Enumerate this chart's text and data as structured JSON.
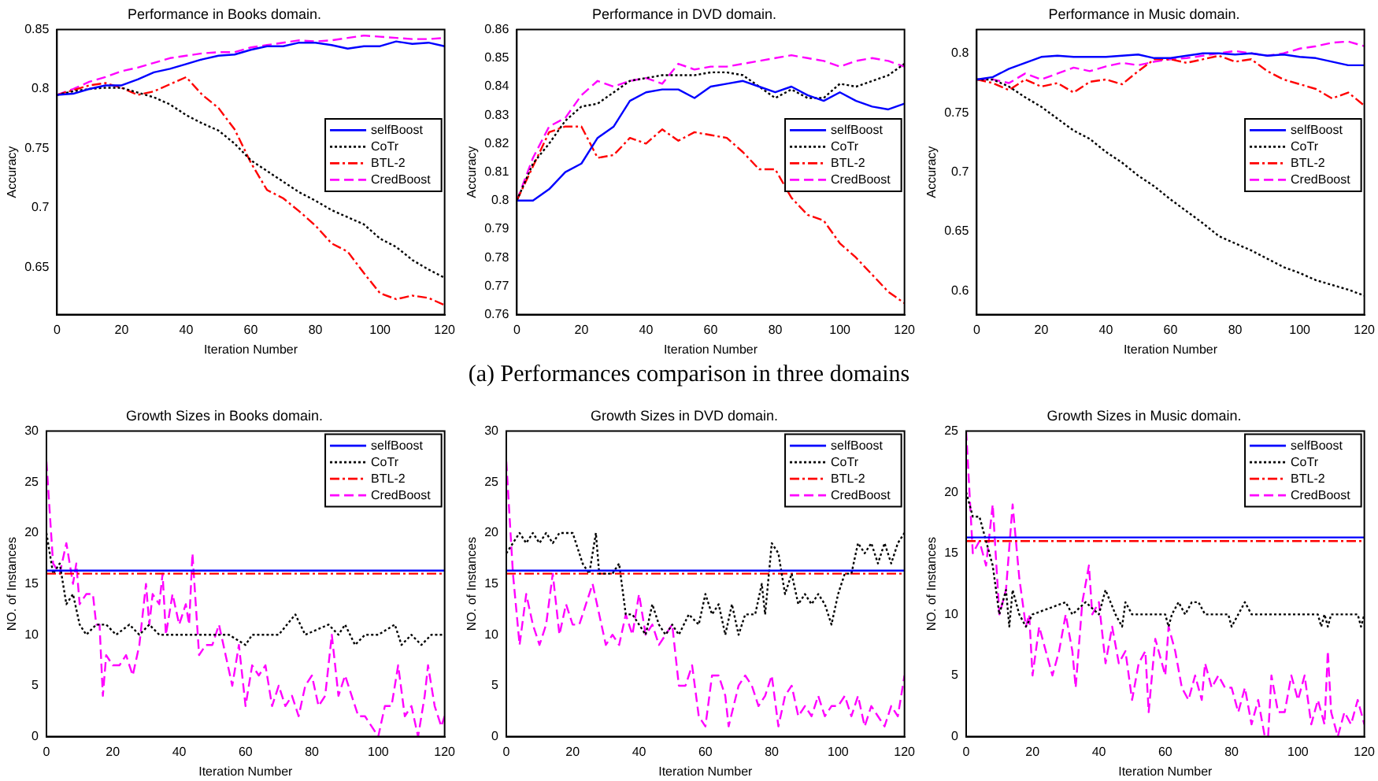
{
  "chart_data": [
    {
      "type": "line",
      "title": "Performance in Books domain.",
      "xlabel": "Iteration Number",
      "ylabel": "Accuracy",
      "xlim": [
        0,
        120
      ],
      "xticks": [
        0,
        20,
        40,
        60,
        80,
        100,
        120
      ],
      "ylim": [
        0.61,
        0.85
      ],
      "yticks": [
        0.65,
        0.7,
        0.75,
        0.8,
        0.85
      ],
      "legend": "right",
      "grid": false,
      "annotations": [
        "(a) Performances comparison in three domains"
      ],
      "x": [
        0,
        5,
        10,
        15,
        20,
        25,
        30,
        35,
        40,
        45,
        50,
        55,
        60,
        65,
        70,
        75,
        80,
        85,
        90,
        95,
        100,
        105,
        110,
        115,
        120
      ],
      "series": [
        {
          "name": "selfBoost",
          "color": "#0000ff",
          "line_style": "solid",
          "values": [
            0.795,
            0.796,
            0.8,
            0.803,
            0.803,
            0.808,
            0.814,
            0.817,
            0.821,
            0.825,
            0.828,
            0.829,
            0.833,
            0.836,
            0.836,
            0.839,
            0.839,
            0.837,
            0.834,
            0.836,
            0.836,
            0.84,
            0.838,
            0.839,
            0.836
          ]
        },
        {
          "name": "CoTr",
          "color": "#000000",
          "line_style": "dotted",
          "values": [
            0.795,
            0.798,
            0.8,
            0.801,
            0.801,
            0.797,
            0.793,
            0.787,
            0.778,
            0.771,
            0.765,
            0.754,
            0.74,
            0.731,
            0.722,
            0.713,
            0.706,
            0.698,
            0.692,
            0.686,
            0.674,
            0.667,
            0.656,
            0.648,
            0.641
          ]
        },
        {
          "name": "BTL-2",
          "color": "#ff0000",
          "line_style": "dashdot",
          "values": [
            0.795,
            0.799,
            0.803,
            0.805,
            0.801,
            0.795,
            0.798,
            0.804,
            0.81,
            0.795,
            0.784,
            0.766,
            0.738,
            0.715,
            0.708,
            0.697,
            0.685,
            0.67,
            0.663,
            0.645,
            0.628,
            0.623,
            0.626,
            0.624,
            0.618
          ]
        },
        {
          "name": "CredBoost",
          "color": "#ff00ff",
          "line_style": "dashed",
          "values": [
            0.795,
            0.8,
            0.806,
            0.81,
            0.815,
            0.818,
            0.822,
            0.826,
            0.828,
            0.83,
            0.831,
            0.831,
            0.835,
            0.837,
            0.839,
            0.841,
            0.84,
            0.841,
            0.843,
            0.845,
            0.844,
            0.843,
            0.842,
            0.842,
            0.843
          ]
        }
      ]
    },
    {
      "type": "line",
      "title": "Performance in DVD domain.",
      "xlabel": "Iteration Number",
      "ylabel": "Accuracy",
      "xlim": [
        0,
        120
      ],
      "xticks": [
        0,
        20,
        40,
        60,
        80,
        100,
        120
      ],
      "ylim": [
        0.76,
        0.86
      ],
      "yticks": [
        0.76,
        0.77,
        0.78,
        0.79,
        0.8,
        0.81,
        0.82,
        0.83,
        0.84,
        0.85,
        0.86
      ],
      "legend": "right",
      "grid": false,
      "x": [
        0,
        5,
        10,
        15,
        20,
        25,
        30,
        35,
        40,
        45,
        50,
        55,
        60,
        65,
        70,
        75,
        80,
        85,
        90,
        95,
        100,
        105,
        110,
        115,
        120
      ],
      "series": [
        {
          "name": "selfBoost",
          "color": "#0000ff",
          "line_style": "solid",
          "values": [
            0.8,
            0.8,
            0.804,
            0.81,
            0.813,
            0.822,
            0.826,
            0.835,
            0.838,
            0.839,
            0.839,
            0.836,
            0.84,
            0.841,
            0.842,
            0.84,
            0.838,
            0.84,
            0.837,
            0.835,
            0.838,
            0.835,
            0.833,
            0.832,
            0.834
          ]
        },
        {
          "name": "CoTr",
          "color": "#000000",
          "line_style": "dotted",
          "values": [
            0.8,
            0.813,
            0.82,
            0.828,
            0.833,
            0.834,
            0.838,
            0.842,
            0.843,
            0.844,
            0.844,
            0.844,
            0.845,
            0.845,
            0.844,
            0.84,
            0.836,
            0.839,
            0.836,
            0.836,
            0.841,
            0.84,
            0.842,
            0.844,
            0.848
          ]
        },
        {
          "name": "BTL-2",
          "color": "#ff0000",
          "line_style": "dashdot",
          "values": [
            0.8,
            0.812,
            0.824,
            0.826,
            0.826,
            0.815,
            0.816,
            0.822,
            0.82,
            0.825,
            0.821,
            0.824,
            0.823,
            0.822,
            0.817,
            0.811,
            0.811,
            0.801,
            0.795,
            0.793,
            0.785,
            0.78,
            0.774,
            0.768,
            0.764
          ]
        },
        {
          "name": "CredBoost",
          "color": "#ff00ff",
          "line_style": "dashed",
          "values": [
            0.8,
            0.815,
            0.826,
            0.829,
            0.837,
            0.842,
            0.84,
            0.842,
            0.843,
            0.841,
            0.848,
            0.846,
            0.847,
            0.847,
            0.848,
            0.849,
            0.85,
            0.851,
            0.85,
            0.849,
            0.847,
            0.849,
            0.85,
            0.849,
            0.847
          ]
        }
      ]
    },
    {
      "type": "line",
      "title": "Performance in Music domain.",
      "xlabel": "Iteration Number",
      "ylabel": "Accuracy",
      "xlim": [
        0,
        120
      ],
      "xticks": [
        0,
        20,
        40,
        60,
        80,
        100,
        120
      ],
      "ylim": [
        0.58,
        0.82
      ],
      "yticks": [
        0.6,
        0.65,
        0.7,
        0.75,
        0.8
      ],
      "legend": "right",
      "grid": false,
      "x": [
        0,
        5,
        10,
        15,
        20,
        25,
        30,
        35,
        40,
        45,
        50,
        55,
        60,
        65,
        70,
        75,
        80,
        85,
        90,
        95,
        100,
        105,
        110,
        115,
        120
      ],
      "series": [
        {
          "name": "selfBoost",
          "color": "#0000ff",
          "line_style": "solid",
          "values": [
            0.778,
            0.78,
            0.787,
            0.792,
            0.797,
            0.798,
            0.797,
            0.797,
            0.797,
            0.798,
            0.799,
            0.796,
            0.796,
            0.798,
            0.8,
            0.8,
            0.799,
            0.8,
            0.798,
            0.799,
            0.797,
            0.796,
            0.793,
            0.79,
            0.79
          ]
        },
        {
          "name": "CoTr",
          "color": "#000000",
          "line_style": "dotted",
          "values": [
            0.778,
            0.778,
            0.772,
            0.763,
            0.755,
            0.745,
            0.735,
            0.728,
            0.717,
            0.708,
            0.697,
            0.688,
            0.677,
            0.667,
            0.657,
            0.646,
            0.64,
            0.634,
            0.627,
            0.62,
            0.615,
            0.609,
            0.605,
            0.601,
            0.596
          ]
        },
        {
          "name": "BTL-2",
          "color": "#ff0000",
          "line_style": "dashdot",
          "values": [
            0.778,
            0.775,
            0.769,
            0.778,
            0.772,
            0.775,
            0.767,
            0.776,
            0.778,
            0.774,
            0.785,
            0.795,
            0.795,
            0.792,
            0.795,
            0.798,
            0.793,
            0.795,
            0.785,
            0.778,
            0.774,
            0.77,
            0.762,
            0.767,
            0.756
          ]
        },
        {
          "name": "CredBoost",
          "color": "#ff00ff",
          "line_style": "dashed",
          "values": [
            0.778,
            0.778,
            0.775,
            0.783,
            0.778,
            0.783,
            0.788,
            0.785,
            0.789,
            0.792,
            0.79,
            0.793,
            0.795,
            0.796,
            0.798,
            0.8,
            0.802,
            0.8,
            0.798,
            0.8,
            0.804,
            0.806,
            0.809,
            0.81,
            0.806
          ]
        }
      ]
    },
    {
      "type": "line",
      "title": "Growth Sizes in Books domain.",
      "xlabel": "Iteration Number",
      "ylabel": "NO. of Instances",
      "xlim": [
        0,
        120
      ],
      "xticks": [
        0,
        20,
        40,
        60,
        80,
        100,
        120
      ],
      "ylim": [
        0,
        30
      ],
      "yticks": [
        0,
        5,
        10,
        15,
        20,
        25,
        30
      ],
      "legend": "top right",
      "grid": false,
      "series": [
        {
          "name": "selfBoost",
          "color": "#0000ff",
          "line_style": "solid",
          "x": [
            0,
            120
          ],
          "values": [
            16.3,
            16.3
          ]
        },
        {
          "name": "CoTr",
          "color": "#000000",
          "line_style": "dotted",
          "x": [
            0,
            2,
            4,
            6,
            8,
            10,
            12,
            15,
            18,
            21,
            25,
            28,
            31,
            34,
            40,
            48,
            55,
            60,
            62,
            70,
            75,
            78,
            85,
            88,
            90,
            93,
            96,
            100,
            105,
            107,
            110,
            113,
            116,
            120
          ],
          "values": [
            20,
            16,
            17,
            13,
            14,
            11,
            10,
            11,
            11,
            10,
            11,
            10,
            11,
            10,
            10,
            10,
            10,
            9,
            10,
            10,
            12,
            10,
            11,
            10,
            11,
            9,
            10,
            10,
            11,
            9,
            10,
            9,
            10,
            10
          ]
        },
        {
          "name": "BTL-2",
          "color": "#ff0000",
          "line_style": "dashdot",
          "x": [
            0,
            120
          ],
          "values": [
            16,
            16
          ]
        },
        {
          "name": "CredBoost",
          "color": "#ff00ff",
          "line_style": "dashed",
          "x": [
            0,
            2,
            4,
            6,
            8,
            9,
            10,
            12,
            14,
            15,
            16,
            17,
            18,
            20,
            22,
            24,
            26,
            28,
            30,
            31,
            32,
            34,
            35,
            36,
            38,
            40,
            42,
            43,
            44,
            46,
            48,
            50,
            52,
            54,
            56,
            58,
            60,
            62,
            64,
            66,
            68,
            70,
            72,
            74,
            76,
            78,
            80,
            82,
            84,
            86,
            88,
            90,
            92,
            94,
            96,
            98,
            100,
            102,
            104,
            106,
            108,
            110,
            112,
            114,
            115,
            117,
            119,
            120
          ],
          "values": [
            27,
            17,
            16,
            19,
            15,
            17,
            13,
            14,
            14,
            11,
            11,
            4,
            8,
            7,
            7,
            8,
            6,
            9,
            15,
            11,
            14,
            13,
            16,
            10,
            14,
            11,
            13,
            11,
            18,
            8,
            9,
            9,
            11,
            8,
            5,
            9,
            3,
            7,
            6,
            7,
            3,
            5,
            3,
            4,
            2,
            5,
            6,
            3,
            4,
            10,
            4,
            6,
            4,
            2,
            2,
            1,
            0,
            3,
            3,
            7,
            2,
            3,
            0,
            4,
            7,
            3,
            1,
            2
          ]
        }
      ]
    },
    {
      "type": "line",
      "title": "Growth Sizes in DVD domain.",
      "xlabel": "Iteration Number",
      "ylabel": "NO. of Instances",
      "xlim": [
        0,
        120
      ],
      "xticks": [
        0,
        20,
        40,
        60,
        80,
        100,
        120
      ],
      "ylim": [
        0,
        30
      ],
      "yticks": [
        0,
        5,
        10,
        15,
        20,
        25,
        30
      ],
      "legend": "top right",
      "grid": false,
      "series": [
        {
          "name": "selfBoost",
          "color": "#0000ff",
          "line_style": "solid",
          "x": [
            0,
            120
          ],
          "values": [
            16.3,
            16.3
          ]
        },
        {
          "name": "CoTr",
          "color": "#000000",
          "line_style": "dotted",
          "x": [
            0,
            2,
            4,
            6,
            8,
            10,
            12,
            14,
            16,
            20,
            22,
            23,
            25,
            27,
            28,
            32,
            34,
            36,
            38,
            40,
            42,
            44,
            46,
            48,
            50,
            52,
            55,
            58,
            60,
            62,
            64,
            66,
            68,
            70,
            72,
            75,
            77,
            78,
            80,
            82,
            84,
            86,
            88,
            90,
            92,
            94,
            96,
            98,
            100,
            102,
            104,
            106,
            108,
            110,
            112,
            114,
            116,
            118,
            120
          ],
          "values": [
            18,
            19,
            20,
            19,
            20,
            19,
            20,
            19,
            20,
            20,
            18,
            17,
            16,
            20,
            16,
            16,
            17,
            12,
            12,
            11,
            10,
            13,
            11,
            10,
            11,
            10,
            12,
            11,
            14,
            12,
            13,
            10,
            13,
            10,
            12,
            12,
            15,
            12,
            19,
            18,
            14,
            16,
            13,
            14,
            13,
            14,
            13,
            11,
            14,
            16,
            16,
            19,
            18,
            19,
            17,
            19,
            17,
            19,
            20
          ]
        },
        {
          "name": "BTL-2",
          "color": "#ff0000",
          "line_style": "dashdot",
          "x": [
            0,
            120
          ],
          "values": [
            16,
            16
          ]
        },
        {
          "name": "CredBoost",
          "color": "#ff00ff",
          "line_style": "dashed",
          "x": [
            0,
            2,
            4,
            6,
            8,
            10,
            12,
            14,
            16,
            18,
            20,
            22,
            24,
            26,
            28,
            30,
            32,
            34,
            36,
            38,
            40,
            42,
            44,
            46,
            48,
            50,
            52,
            54,
            56,
            58,
            60,
            62,
            64,
            66,
            67,
            70,
            72,
            74,
            76,
            78,
            80,
            82,
            84,
            86,
            88,
            90,
            92,
            94,
            96,
            98,
            100,
            102,
            104,
            106,
            108,
            110,
            112,
            114,
            116,
            118,
            120
          ],
          "values": [
            27,
            16,
            9,
            14,
            11,
            9,
            11,
            16,
            10,
            13,
            11,
            11,
            13,
            15,
            12,
            9,
            10,
            9,
            12,
            10,
            14,
            10,
            11,
            9,
            10,
            11,
            5,
            5,
            7,
            2,
            1,
            6,
            6,
            4,
            1,
            5,
            6,
            5,
            3,
            4,
            6,
            1,
            4,
            5,
            2,
            3,
            2,
            4,
            2,
            3,
            3,
            4,
            2,
            4,
            1,
            3,
            2,
            1,
            3,
            2,
            6
          ]
        }
      ]
    },
    {
      "type": "line",
      "title": "Growth Sizes in Music domain.",
      "xlabel": "Iteration Number",
      "ylabel": "NO. of Instances",
      "xlim": [
        0,
        120
      ],
      "xticks": [
        0,
        20,
        40,
        60,
        80,
        100,
        120
      ],
      "ylim": [
        0,
        25
      ],
      "yticks": [
        0,
        5,
        10,
        15,
        20,
        25
      ],
      "legend": "top right",
      "grid": false,
      "series": [
        {
          "name": "selfBoost",
          "color": "#0000ff",
          "line_style": "solid",
          "x": [
            0,
            120
          ],
          "values": [
            16.3,
            16.3
          ]
        },
        {
          "name": "CoTr",
          "color": "#000000",
          "line_style": "dotted",
          "x": [
            0,
            2,
            4,
            6,
            8,
            10,
            12,
            13,
            14,
            16,
            18,
            20,
            30,
            32,
            36,
            40,
            42,
            45,
            47,
            48,
            50,
            60,
            61,
            62,
            64,
            66,
            68,
            70,
            72,
            79,
            80,
            82,
            84,
            86,
            106,
            107,
            108,
            109,
            110,
            118,
            119,
            120
          ],
          "values": [
            20,
            18,
            18,
            16,
            14,
            10,
            12,
            9,
            12,
            10,
            9,
            10,
            11,
            10,
            11,
            10,
            12,
            10,
            9,
            11,
            10,
            10,
            9,
            10,
            11,
            10,
            11,
            11,
            10,
            10,
            9,
            10,
            11,
            10,
            10,
            9,
            10,
            9,
            10,
            10,
            9,
            10
          ]
        },
        {
          "name": "BTL-2",
          "color": "#ff0000",
          "line_style": "dashdot",
          "x": [
            0,
            120
          ],
          "values": [
            16,
            16
          ]
        },
        {
          "name": "CredBoost",
          "color": "#ff00ff",
          "line_style": "dashed",
          "x": [
            0,
            2,
            4,
            6,
            8,
            10,
            12,
            14,
            16,
            18,
            19,
            20,
            22,
            24,
            26,
            28,
            30,
            32,
            33,
            35,
            37,
            38,
            40,
            42,
            44,
            46,
            48,
            50,
            52,
            54,
            55,
            57,
            60,
            61,
            63,
            65,
            67,
            69,
            71,
            72,
            74,
            76,
            78,
            80,
            82,
            84,
            86,
            88,
            90,
            91,
            92,
            94,
            96,
            98,
            100,
            102,
            104,
            106,
            108,
            109,
            110,
            112,
            114,
            116,
            118,
            120
          ],
          "values": [
            25,
            15,
            16,
            14,
            19,
            10,
            12,
            19,
            13,
            9,
            10,
            5,
            9,
            7,
            5,
            7,
            10,
            7,
            4,
            11,
            14,
            10,
            11,
            6,
            9,
            6,
            7,
            3,
            6,
            7,
            2,
            8,
            5,
            9,
            7,
            4,
            3,
            5,
            3,
            6,
            4,
            5,
            4,
            4,
            2,
            4,
            1,
            3,
            0,
            0,
            5,
            2,
            2,
            5,
            3,
            5,
            1,
            3,
            1,
            7,
            2,
            0,
            2,
            1,
            3,
            1
          ]
        }
      ]
    }
  ]
}
